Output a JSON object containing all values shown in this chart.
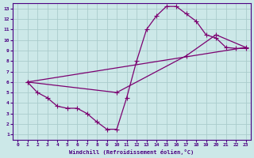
{
  "xlabel": "Windchill (Refroidissement éolien,°C)",
  "bg_color": "#cce8e8",
  "line_color": "#7B0070",
  "grid_color": "#aacccc",
  "xlim": [
    -0.5,
    23.5
  ],
  "ylim": [
    0.5,
    13.5
  ],
  "xticks": [
    0,
    1,
    2,
    3,
    4,
    5,
    6,
    7,
    8,
    9,
    10,
    11,
    12,
    13,
    14,
    15,
    16,
    17,
    18,
    19,
    20,
    21,
    22,
    23
  ],
  "yticks": [
    1,
    2,
    3,
    4,
    5,
    6,
    7,
    8,
    9,
    10,
    11,
    12,
    13
  ],
  "line1_x": [
    1,
    2,
    3,
    4,
    5,
    6,
    7,
    8,
    9,
    10,
    11,
    12,
    13,
    14,
    15,
    16,
    17,
    18,
    19,
    20,
    21,
    22,
    23
  ],
  "line1_y": [
    6,
    5,
    4.5,
    3.7,
    3.5,
    3.5,
    3.0,
    2.2,
    1.5,
    1.5,
    4.5,
    8.0,
    11.0,
    12.3,
    13.2,
    13.2,
    12.5,
    11.8,
    10.5,
    10.2,
    9.3,
    9.2,
    9.2
  ],
  "line2_x": [
    1,
    10,
    17,
    20,
    23
  ],
  "line2_y": [
    6,
    5,
    8.5,
    10.5,
    9.3
  ],
  "line3_x": [
    1,
    23
  ],
  "line3_y": [
    6,
    9.3
  ]
}
